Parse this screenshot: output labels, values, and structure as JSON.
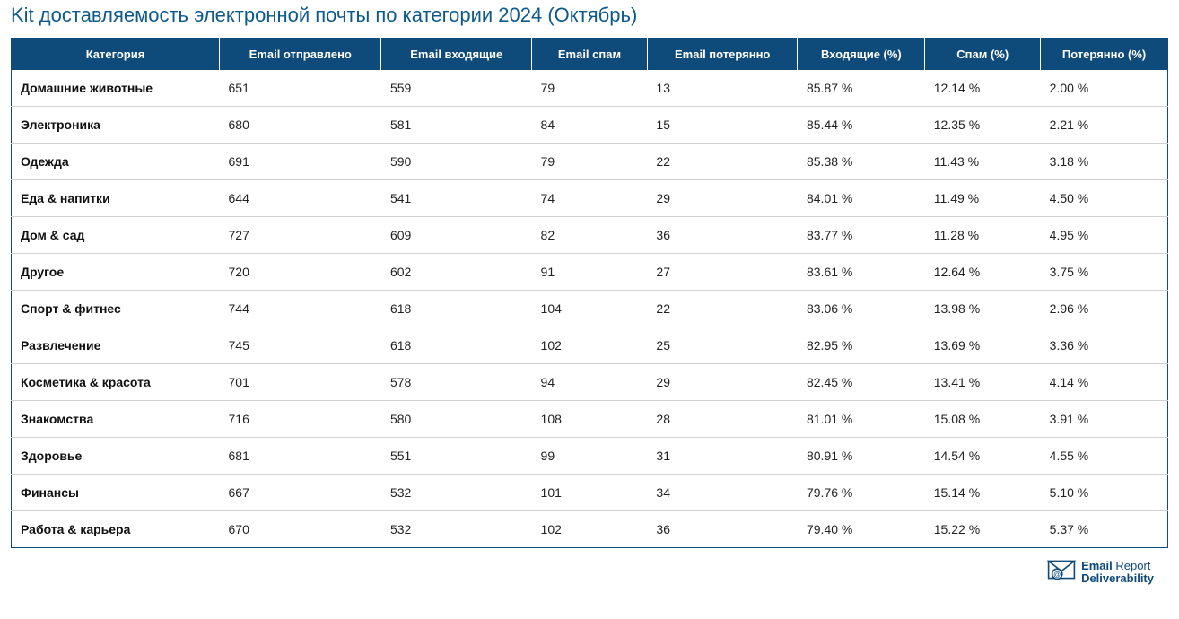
{
  "title": "Kit доставляемость электронной почты по категории 2024 (Октябрь)",
  "colors": {
    "header_bg": "#0e4a7a",
    "header_text": "#ffffff",
    "title_color": "#0e5a8a",
    "row_border": "#d0d0d0",
    "body_text": "#222222",
    "background": "#ffffff"
  },
  "table": {
    "columns": [
      "Категория",
      "Email отправлено",
      "Email входящие",
      "Email спам",
      "Email потерянно",
      "Входящие (%)",
      "Спам (%)",
      "Потерянно (%)"
    ],
    "rows": [
      {
        "category": "Домашние животные",
        "sent": "651",
        "inbox": "559",
        "spam": "79",
        "lost": "13",
        "inbox_pct": "85.87 %",
        "spam_pct": "12.14 %",
        "lost_pct": "2.00 %"
      },
      {
        "category": "Электроника",
        "sent": "680",
        "inbox": "581",
        "spam": "84",
        "lost": "15",
        "inbox_pct": "85.44 %",
        "spam_pct": "12.35 %",
        "lost_pct": "2.21 %"
      },
      {
        "category": "Одежда",
        "sent": "691",
        "inbox": "590",
        "spam": "79",
        "lost": "22",
        "inbox_pct": "85.38 %",
        "spam_pct": "11.43 %",
        "lost_pct": "3.18 %"
      },
      {
        "category": "Еда & напитки",
        "sent": "644",
        "inbox": "541",
        "spam": "74",
        "lost": "29",
        "inbox_pct": "84.01 %",
        "spam_pct": "11.49 %",
        "lost_pct": "4.50 %"
      },
      {
        "category": "Дом & сад",
        "sent": "727",
        "inbox": "609",
        "spam": "82",
        "lost": "36",
        "inbox_pct": "83.77 %",
        "spam_pct": "11.28 %",
        "lost_pct": "4.95 %"
      },
      {
        "category": "Другое",
        "sent": "720",
        "inbox": "602",
        "spam": "91",
        "lost": "27",
        "inbox_pct": "83.61 %",
        "spam_pct": "12.64 %",
        "lost_pct": "3.75 %"
      },
      {
        "category": "Спорт & фитнес",
        "sent": "744",
        "inbox": "618",
        "spam": "104",
        "lost": "22",
        "inbox_pct": "83.06 %",
        "spam_pct": "13.98 %",
        "lost_pct": "2.96 %"
      },
      {
        "category": "Развлечение",
        "sent": "745",
        "inbox": "618",
        "spam": "102",
        "lost": "25",
        "inbox_pct": "82.95 %",
        "spam_pct": "13.69 %",
        "lost_pct": "3.36 %"
      },
      {
        "category": "Косметика & красота",
        "sent": "701",
        "inbox": "578",
        "spam": "94",
        "lost": "29",
        "inbox_pct": "82.45 %",
        "spam_pct": "13.41 %",
        "lost_pct": "4.14 %"
      },
      {
        "category": "Знакомства",
        "sent": "716",
        "inbox": "580",
        "spam": "108",
        "lost": "28",
        "inbox_pct": "81.01 %",
        "spam_pct": "15.08 %",
        "lost_pct": "3.91 %"
      },
      {
        "category": "Здоровье",
        "sent": "681",
        "inbox": "551",
        "spam": "99",
        "lost": "31",
        "inbox_pct": "80.91 %",
        "spam_pct": "14.54 %",
        "lost_pct": "4.55 %"
      },
      {
        "category": "Финансы",
        "sent": "667",
        "inbox": "532",
        "spam": "101",
        "lost": "34",
        "inbox_pct": "79.76 %",
        "spam_pct": "15.14 %",
        "lost_pct": "5.10 %"
      },
      {
        "category": "Работа & карьера",
        "sent": "670",
        "inbox": "532",
        "spam": "102",
        "lost": "36",
        "inbox_pct": "79.40 %",
        "spam_pct": "15.22 %",
        "lost_pct": "5.37 %"
      }
    ]
  },
  "footer": {
    "line1_strong": "Email",
    "line1_light": " Report",
    "line2": "Deliverability"
  }
}
